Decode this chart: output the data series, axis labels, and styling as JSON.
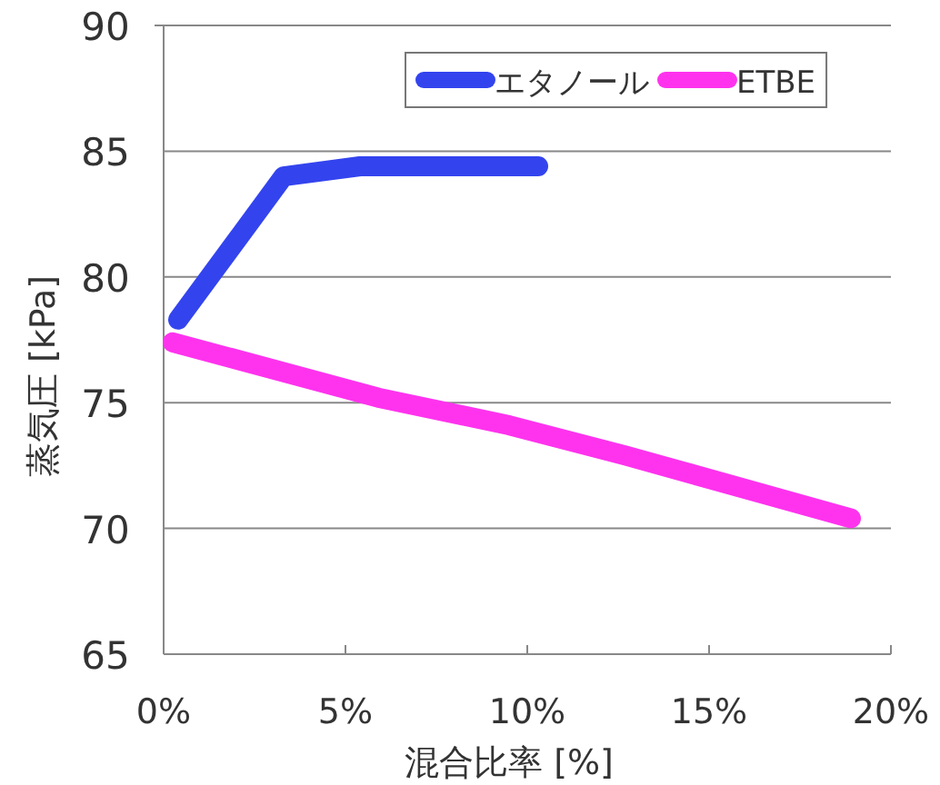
{
  "chart_data": {
    "type": "line",
    "xlabel": "混合比率 [%]",
    "ylabel": "蒸気圧 [kPa]",
    "series": [
      {
        "name": "エタノール",
        "color": "#3344ee",
        "x": [
          0.4,
          3.3,
          5.4,
          10.3
        ],
        "values": [
          78.3,
          84.0,
          84.4,
          84.4
        ]
      },
      {
        "name": "ETBE",
        "color": "#ff33ee",
        "x": [
          0.25,
          5.9,
          9.5,
          12.7,
          18.9
        ],
        "values": [
          77.4,
          75.2,
          74.1,
          72.9,
          70.4
        ]
      }
    ],
    "xlim": [
      0,
      20
    ],
    "xticks": [
      {
        "value": 0,
        "label": "0%"
      },
      {
        "value": 5,
        "label": "5%"
      },
      {
        "value": 10,
        "label": "10%"
      },
      {
        "value": 15,
        "label": "15%"
      },
      {
        "value": 20,
        "label": "20%"
      }
    ],
    "ylim": [
      65,
      90
    ],
    "yticks": [
      65,
      70,
      75,
      80,
      85,
      90
    ],
    "grid": "y",
    "legend": "top right",
    "marker": "none",
    "line_style": "solid"
  }
}
